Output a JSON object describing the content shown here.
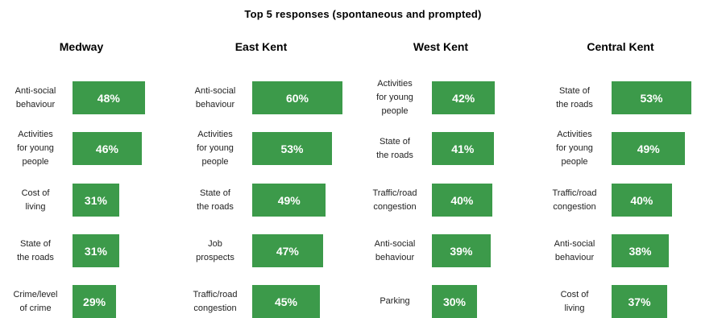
{
  "colors": {
    "bar": "#3c9a4a"
  },
  "chart_data": {
    "type": "bar",
    "title": "Top 5 responses (spontaneous and prompted)",
    "xlim": [
      0,
      60
    ],
    "panels": [
      {
        "name": "Medway",
        "categories": [
          "Anti-social behaviour",
          "Activities for young people",
          "Cost of living",
          "State of the roads",
          "Crime/level of crime"
        ],
        "values": [
          48,
          46,
          31,
          31,
          29
        ],
        "data_labels": [
          "48%",
          "46%",
          "31%",
          "31%",
          "29%"
        ]
      },
      {
        "name": "East Kent",
        "categories": [
          "Anti-social behaviour",
          "Activities for young people",
          "State of the roads",
          "Job prospects",
          "Traffic/road congestion"
        ],
        "values": [
          60,
          53,
          49,
          47,
          45
        ],
        "data_labels": [
          "60%",
          "53%",
          "49%",
          "47%",
          "45%"
        ]
      },
      {
        "name": "West Kent",
        "categories": [
          "Activities for young people",
          "State of the roads",
          "Traffic/road congestion",
          "Anti-social behaviour",
          "Parking"
        ],
        "values": [
          42,
          41,
          40,
          39,
          30
        ],
        "data_labels": [
          "42%",
          "41%",
          "40%",
          "39%",
          "30%"
        ]
      },
      {
        "name": "Central Kent",
        "categories": [
          "State of the roads",
          "Activities for young people",
          "Traffic/road congestion",
          "Anti-social behaviour",
          "Cost of living"
        ],
        "values": [
          53,
          49,
          40,
          38,
          37
        ],
        "data_labels": [
          "53%",
          "49%",
          "40%",
          "38%",
          "37%"
        ]
      }
    ]
  }
}
